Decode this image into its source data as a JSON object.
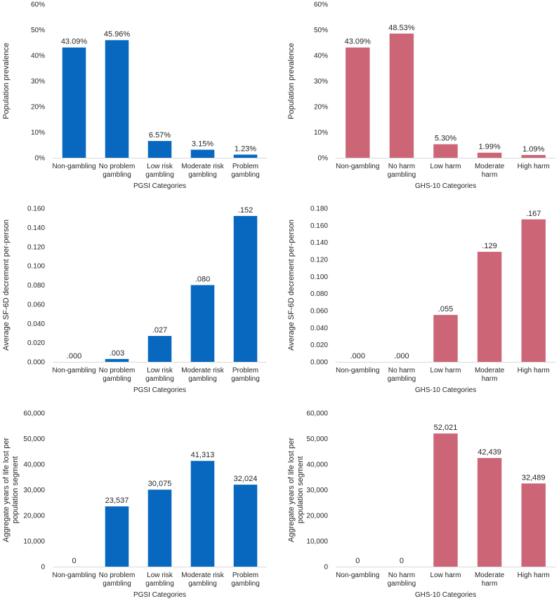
{
  "chart_data": [
    {
      "type": "bar",
      "color": "#0868c0",
      "categories": [
        [
          "Non-gambling"
        ],
        [
          "No problem",
          "gambling"
        ],
        [
          "Low risk",
          "gambling"
        ],
        [
          "Moderate risk",
          "gambling"
        ],
        [
          "Problem",
          "gambling"
        ]
      ],
      "values": [
        43.09,
        45.96,
        6.57,
        3.15,
        1.23
      ],
      "data_labels": [
        "43.09%",
        "45.96%",
        "6.57%",
        "3.15%",
        "1.23%"
      ],
      "yticks": [
        "0%",
        "10%",
        "20%",
        "30%",
        "40%",
        "50%",
        "60%"
      ],
      "ylim": [
        0,
        60
      ],
      "ylabel": [
        "Population prevalence"
      ],
      "xlabel": "PGSI Categories"
    },
    {
      "type": "bar",
      "color": "#cc6677",
      "categories": [
        [
          "Non-gambling"
        ],
        [
          "No harm",
          "gambling"
        ],
        [
          "Low harm"
        ],
        [
          "Moderate",
          "harm"
        ],
        [
          "High harm"
        ]
      ],
      "values": [
        43.09,
        48.53,
        5.3,
        1.99,
        1.09
      ],
      "data_labels": [
        "43.09%",
        "48.53%",
        "5.30%",
        "1.99%",
        "1.09%"
      ],
      "yticks": [
        "0%",
        "10%",
        "20%",
        "30%",
        "40%",
        "50%",
        "60%"
      ],
      "ylim": [
        0,
        60
      ],
      "ylabel": [
        "Population prevalence"
      ],
      "xlabel": "GHS-10 Categories"
    },
    {
      "type": "bar",
      "color": "#0868c0",
      "categories": [
        [
          "Non-gambling"
        ],
        [
          "No problem",
          "gambling"
        ],
        [
          "Low risk",
          "gambling"
        ],
        [
          "Moderate risk",
          "gambling"
        ],
        [
          "Problem",
          "gambling"
        ]
      ],
      "values": [
        0.0,
        0.003,
        0.027,
        0.08,
        0.152
      ],
      "data_labels": [
        ".000",
        ".003",
        ".027",
        ".080",
        ".152"
      ],
      "yticks": [
        "0.000",
        "0.020",
        "0.040",
        "0.060",
        "0.080",
        "0.100",
        "0.120",
        "0.140",
        "0.160"
      ],
      "ylim": [
        0,
        0.16
      ],
      "ylabel": [
        "Average SF-6D decrement per-person"
      ],
      "xlabel": "PGSI Categories"
    },
    {
      "type": "bar",
      "color": "#cc6677",
      "categories": [
        [
          "Non-gambling"
        ],
        [
          "No harm",
          "gambling"
        ],
        [
          "Low harm"
        ],
        [
          "Moderate",
          "harm"
        ],
        [
          "High harm"
        ]
      ],
      "values": [
        0.0,
        0.0,
        0.055,
        0.129,
        0.167
      ],
      "data_labels": [
        ".000",
        ".000",
        ".055",
        ".129",
        ".167"
      ],
      "yticks": [
        "0.000",
        "0.020",
        "0.040",
        "0.060",
        "0.080",
        "0.100",
        "0.120",
        "0.140",
        "0.160",
        "0.180"
      ],
      "ylim": [
        0,
        0.18
      ],
      "ylabel": [
        "Average SF-6D decrement per-person"
      ],
      "xlabel": "GHS-10 Categories"
    },
    {
      "type": "bar",
      "color": "#0868c0",
      "categories": [
        [
          "Non-gambling"
        ],
        [
          "No problem",
          "gambling"
        ],
        [
          "Low risk",
          "gambling"
        ],
        [
          "Moderate risk",
          "gambling"
        ],
        [
          "Problem",
          "gambling"
        ]
      ],
      "values": [
        0,
        23537,
        30075,
        41313,
        32024
      ],
      "data_labels": [
        "0",
        "23,537",
        "30,075",
        "41,313",
        "32,024"
      ],
      "yticks": [
        "0",
        "10,000",
        "20,000",
        "30,000",
        "40,000",
        "50,000",
        "60,000"
      ],
      "ylim": [
        0,
        60000
      ],
      "ylabel": [
        "Aggregate years of life lost per",
        "population segment"
      ],
      "xlabel": "PGSI Categories"
    },
    {
      "type": "bar",
      "color": "#cc6677",
      "categories": [
        [
          "Non-gambling"
        ],
        [
          "No harm",
          "gambling"
        ],
        [
          "Low harm"
        ],
        [
          "Moderate",
          "harm"
        ],
        [
          "High harm"
        ]
      ],
      "values": [
        0,
        0,
        52021,
        42439,
        32489
      ],
      "data_labels": [
        "0",
        "0",
        "52,021",
        "42,439",
        "32,489"
      ],
      "yticks": [
        "0",
        "10,000",
        "20,000",
        "30,000",
        "40,000",
        "50,000",
        "60,000"
      ],
      "ylim": [
        0,
        60000
      ],
      "ylabel": [
        "Aggregate years of life lost per",
        "population segment"
      ],
      "xlabel": "GHS-10 Categories"
    }
  ]
}
